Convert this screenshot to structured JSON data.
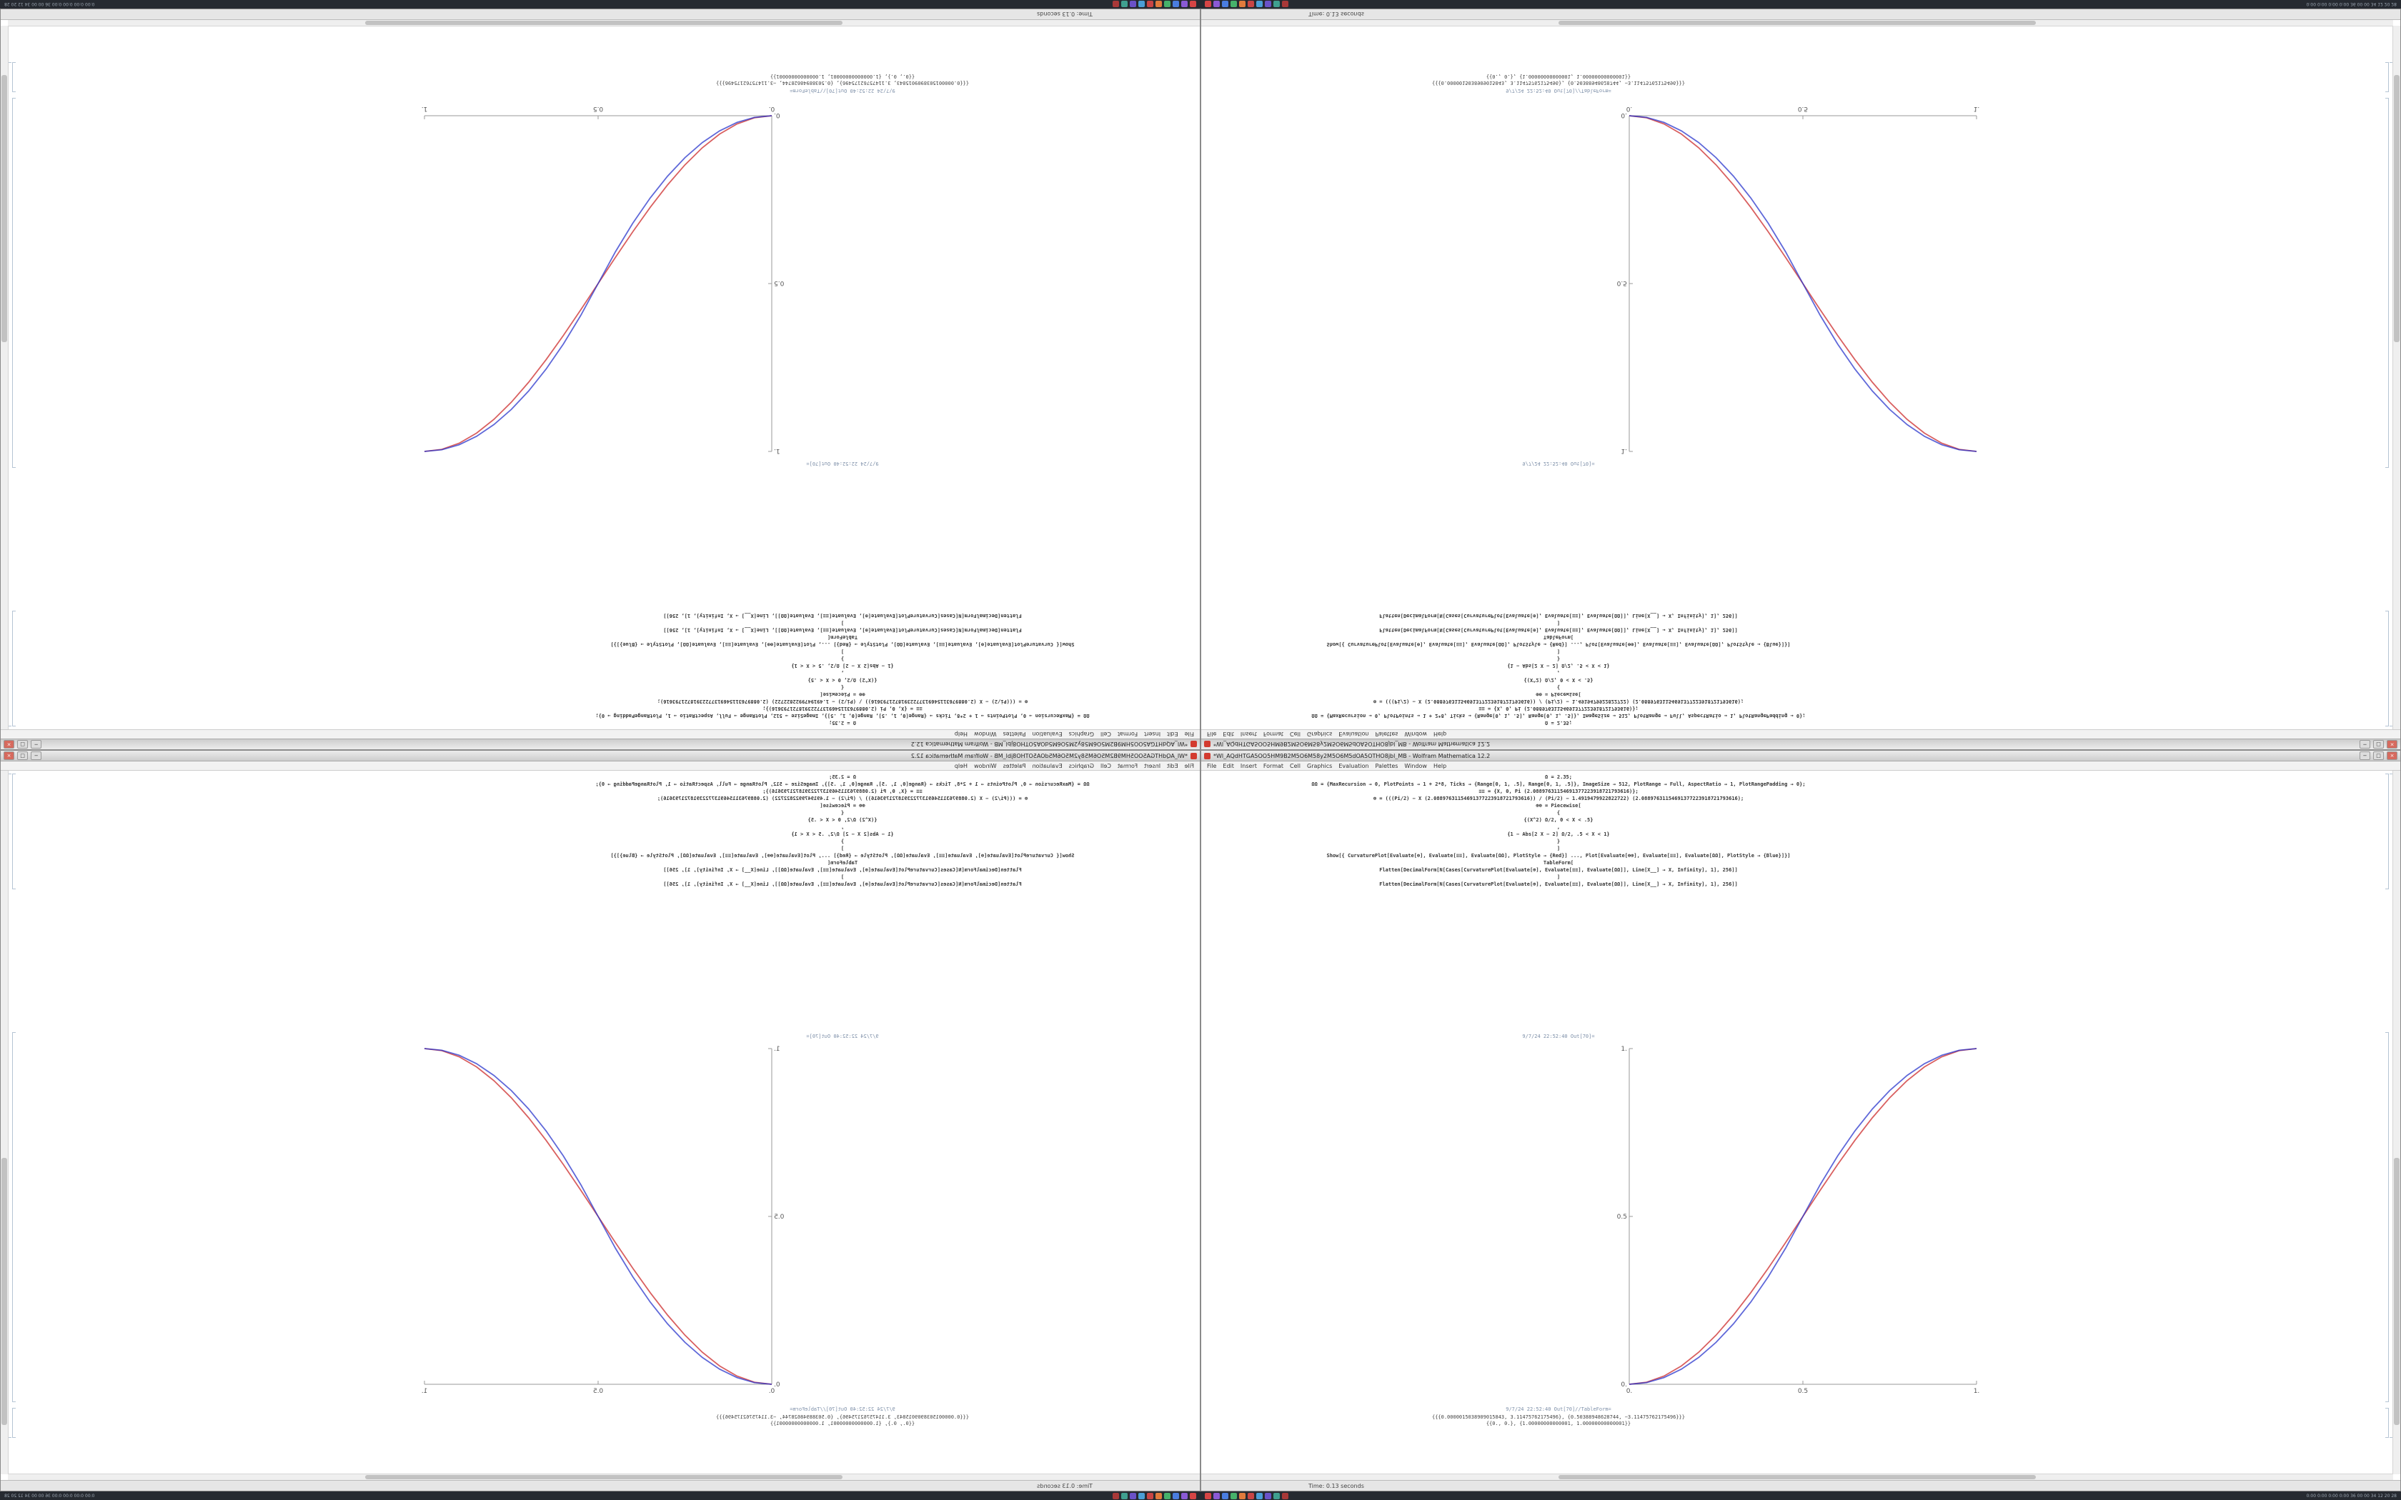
{
  "app": {
    "title": "*Wl_AQdHTGA5OO5HM9B2M5O6M58y2M5O6M5dOA5OTHO8jbl_MB - Wolfram Mathematica 12.2",
    "window_buttons": [
      "−",
      "□",
      "×"
    ],
    "menus": [
      "File",
      "Edit",
      "Insert",
      "Format",
      "Cell",
      "Graphics",
      "Evaluation",
      "Palettes",
      "Window",
      "Help"
    ],
    "status": {
      "time_label": "Time: 0.13 seconds"
    }
  },
  "notebook": {
    "input_lines": [
      "Ω = 2.35;",
      "ΩΩ = {MaxRecursion → 0, PlotPoints → 1 + 2*8, Ticks → {Range[0, 1, .5], Range[0, 1, .5]}, ImageSize → 512, PlotRange → Full, AspectRatio → 1, PlotRangePadding → 0};",
      "≡≡ = {X, 0, Pi (2.08897631154691377223918721793616)};",
      "⊕ = (((Pi/2) − X (2.08897631154691377223918721793616)) / (Pi/2) − 1.4919479922822722) (2.08897631154691377223918721793616);",
      "⊕⊕ = Piecewise[",
      "{",
      "{(X^2) Ω/2, 0 < X < .5}",
      ",",
      "{1 − Abs[2 X − 2] Ω/2, .5 < X < 1}",
      "}",
      "]",
      "Show[{ CurvaturePlot[Evaluate[⊕], Evaluate[≡≡], Evaluate[ΩΩ], PlotStyle → {Red}] ..., Plot[Evaluate[⊕⊕], Evaluate[≡≡], Evaluate[ΩΩ], PlotStyle → {Blue}]}]",
      "TableForm[",
      "Flatten[DecimalForm[N[Cases[CurvaturePlot[Evaluate[⊕], Evaluate[≡≡], Evaluate[ΩΩ]], Line[X__] → X, Infinity], 1], 256]]",
      "]",
      "Flatten[DecimalForm[N[Cases[CurvaturePlot[Evaluate[⊕], Evaluate[≡≡], Evaluate[ΩΩ]], Line[X__] → X, Infinity], 1], 256]]"
    ],
    "out_plot_label": "9/7/24 22:52:40 Out[70]=",
    "out_table_label": "9/7/24 22:52:40 Out[70]//TableForm=",
    "table_rows": [
      "{{{0.0000015038909015843, 3.11475762175496}, {0.50388948628744, −3.11475762175496}}}",
      "{{0., 0.}, {1.00000000000001, 1.00000000000001}}"
    ]
  },
  "chart_data": {
    "type": "line",
    "title": "",
    "xlabel": "",
    "ylabel": "",
    "xlim": [
      0,
      1
    ],
    "ylim": [
      0,
      1
    ],
    "xticks": [
      0,
      0.5,
      1
    ],
    "yticks": [
      0,
      0.5,
      1
    ],
    "xtick_labels": [
      "0.",
      "0.5",
      "1."
    ],
    "ytick_labels": [
      "0.",
      "0.5",
      "1."
    ],
    "axes": "left-bottom",
    "grid": false,
    "legend": "none",
    "axes_color": "#999999",
    "x": [
      0,
      0.05,
      0.1,
      0.15,
      0.2,
      0.25,
      0.3,
      0.35,
      0.4,
      0.45,
      0.5,
      0.55,
      0.6,
      0.65,
      0.7,
      0.75,
      0.8,
      0.85,
      0.9,
      0.95,
      1
    ],
    "series": [
      {
        "name": "CurvaturePlot (Red)",
        "color": "#cc2a2a",
        "values": [
          0,
          0.0062,
          0.0245,
          0.0545,
          0.0955,
          0.1464,
          0.2061,
          0.273,
          0.3455,
          0.4218,
          0.5,
          0.5782,
          0.6545,
          0.727,
          0.7939,
          0.8536,
          0.9045,
          0.9455,
          0.9755,
          0.9938,
          1
        ]
      },
      {
        "name": "Plot (Blue)",
        "color": "#2a35cc",
        "values": [
          0,
          0.005,
          0.02,
          0.045,
          0.08,
          0.125,
          0.18,
          0.245,
          0.32,
          0.405,
          0.5,
          0.595,
          0.68,
          0.755,
          0.82,
          0.875,
          0.92,
          0.955,
          0.98,
          0.995,
          1
        ]
      }
    ]
  },
  "taskbar": {
    "icons": [
      {
        "name": "launcher-red",
        "color": "#d64545"
      },
      {
        "name": "launcher-violet",
        "color": "#8a5ad6"
      },
      {
        "name": "launcher-blue",
        "color": "#4a7de0"
      },
      {
        "name": "launcher-green",
        "color": "#46b16a"
      },
      {
        "name": "launcher-orange",
        "color": "#e07a3c"
      },
      {
        "name": "launcher-crimson",
        "color": "#c84545"
      },
      {
        "name": "launcher-skyblue",
        "color": "#4a9ed6"
      },
      {
        "name": "launcher-purple",
        "color": "#6a52c8"
      },
      {
        "name": "launcher-teal",
        "color": "#3f9f8f"
      },
      {
        "name": "launcher-darkred",
        "color": "#a83838"
      }
    ],
    "tray_text": "0:00  0:00  0:00  0:00   36 00 00 34 12 20 28"
  },
  "quadrants": [
    {
      "position": "top-left",
      "orientation": "rotated-180"
    },
    {
      "position": "top-right",
      "orientation": "flipped-vertical"
    },
    {
      "position": "bottom-left",
      "orientation": "mirrored-horizontal"
    },
    {
      "position": "bottom-right",
      "orientation": "normal"
    }
  ]
}
